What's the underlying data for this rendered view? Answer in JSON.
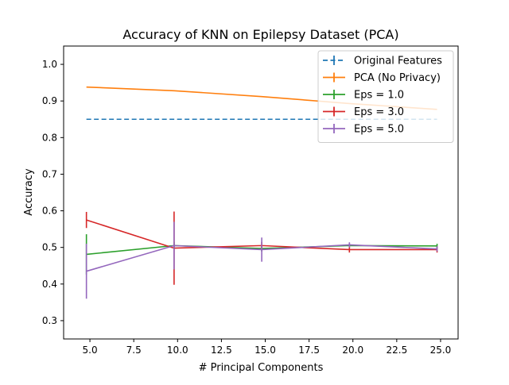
{
  "chart_data": {
    "type": "line",
    "title": "Accuracy of KNN on Epilepsy Dataset (PCA)",
    "xlabel": "# Principal Components",
    "ylabel": "Accuracy",
    "xlim": [
      3.5,
      26.0
    ],
    "ylim": [
      0.25,
      1.05
    ],
    "x_ticks": [
      5.0,
      7.5,
      10.0,
      12.5,
      15.0,
      17.5,
      20.0,
      22.5,
      25.0
    ],
    "x_tick_labels": [
      "5.0",
      "7.5",
      "10.0",
      "12.5",
      "15.0",
      "17.5",
      "20.0",
      "22.5",
      "25.0"
    ],
    "y_ticks": [
      0.3,
      0.4,
      0.5,
      0.6,
      0.7,
      0.8,
      0.9,
      1.0
    ],
    "y_tick_labels": [
      "0.3",
      "0.4",
      "0.5",
      "0.6",
      "0.7",
      "0.8",
      "0.9",
      "1.0"
    ],
    "grid": false,
    "legend_position": "top-right",
    "series": [
      {
        "name": "Original Features",
        "color": "#1f77b4",
        "dashed": true,
        "x": [
          4.8,
          24.8
        ],
        "y": [
          0.85,
          0.85
        ],
        "err": [
          0,
          0
        ]
      },
      {
        "name": "PCA (No Privacy)",
        "color": "#ff7f0e",
        "dashed": false,
        "x": [
          4.8,
          9.8,
          14.8,
          19.8,
          24.8
        ],
        "y": [
          0.938,
          0.928,
          0.912,
          0.893,
          0.877
        ],
        "err": [
          0,
          0,
          0,
          0,
          0
        ]
      },
      {
        "name": "Eps = 1.0",
        "color": "#2ca02c",
        "dashed": false,
        "x": [
          4.8,
          9.8,
          14.8,
          19.8,
          24.8
        ],
        "y": [
          0.481,
          0.505,
          0.497,
          0.505,
          0.504
        ],
        "err": [
          0.055,
          0.01,
          0.008,
          0.006,
          0.006
        ]
      },
      {
        "name": "Eps = 3.0",
        "color": "#d62728",
        "dashed": false,
        "x": [
          4.8,
          9.8,
          14.8,
          19.8,
          24.8
        ],
        "y": [
          0.575,
          0.498,
          0.505,
          0.494,
          0.494
        ],
        "err": [
          0.022,
          0.1,
          0.01,
          0.008,
          0.008
        ]
      },
      {
        "name": "Eps = 5.0",
        "color": "#9467bd",
        "dashed": false,
        "x": [
          4.8,
          9.8,
          14.8,
          19.8,
          24.8
        ],
        "y": [
          0.435,
          0.505,
          0.494,
          0.507,
          0.496
        ],
        "err": [
          0.075,
          0.065,
          0.033,
          0.007,
          0.007
        ]
      }
    ]
  }
}
